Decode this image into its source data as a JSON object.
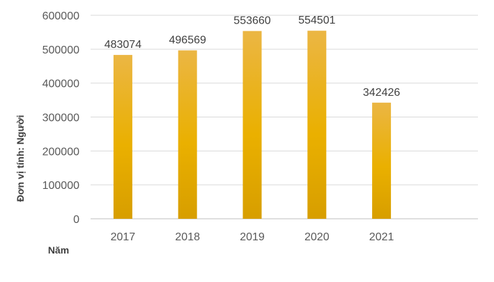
{
  "chart_data": {
    "type": "bar",
    "categories": [
      "2017",
      "2018",
      "2019",
      "2020",
      "2021"
    ],
    "values": [
      483074,
      496569,
      553660,
      554501,
      342426
    ],
    "data_labels": [
      "483074",
      "496569",
      "553660",
      "554501",
      "342426"
    ],
    "ylabel": "Đơn vị tính: Người",
    "xlabel": "Năm",
    "ylim": [
      0,
      600000
    ],
    "yticks": [
      0,
      100000,
      200000,
      300000,
      400000,
      500000,
      600000
    ],
    "ytick_labels": [
      "0",
      "100000",
      "200000",
      "300000",
      "400000",
      "500000",
      "600000"
    ],
    "grid": true,
    "legend": "none",
    "colors": {
      "bar_top": "#EBB644",
      "bar_mid": "#EAB000",
      "bar_bottom": "#D79E00",
      "grid": "#D9D9D9"
    }
  }
}
